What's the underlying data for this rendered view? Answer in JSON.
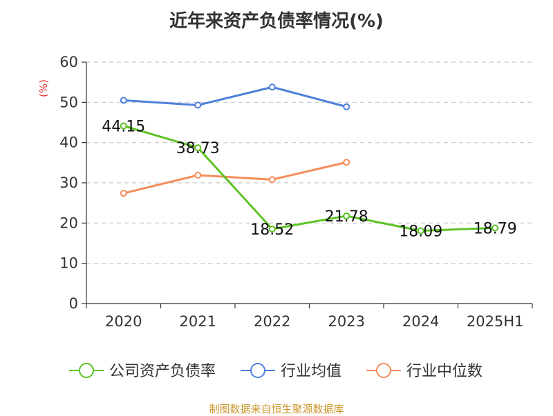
{
  "chart_data": {
    "type": "line",
    "title": "近年来资产负债率情况(%)",
    "ylabel": "(%)",
    "categories": [
      "2020",
      "2021",
      "2022",
      "2023",
      "2024",
      "2025H1"
    ],
    "ylim": [
      0,
      60
    ],
    "yticks": [
      0,
      10,
      20,
      30,
      40,
      50,
      60
    ],
    "grid": true,
    "legend_position": "bottom",
    "series": [
      {
        "name": "公司资产负债率",
        "color": "#5cc323",
        "values": [
          44.15,
          38.73,
          18.52,
          21.78,
          18.09,
          18.79
        ],
        "labels": [
          "44.15",
          "38.73",
          "18.52",
          "21.78",
          "18.09",
          "18.79"
        ]
      },
      {
        "name": "行业均值",
        "color": "#4e7fdb",
        "values": [
          50.5,
          49.3,
          53.8,
          48.9,
          null,
          null
        ]
      },
      {
        "name": "行业中位数",
        "color": "#f58c5a",
        "values": [
          27.4,
          31.9,
          30.8,
          35.1,
          null,
          null
        ]
      }
    ]
  },
  "footer": {
    "source": "制图数据来自恒生聚源数据库"
  }
}
